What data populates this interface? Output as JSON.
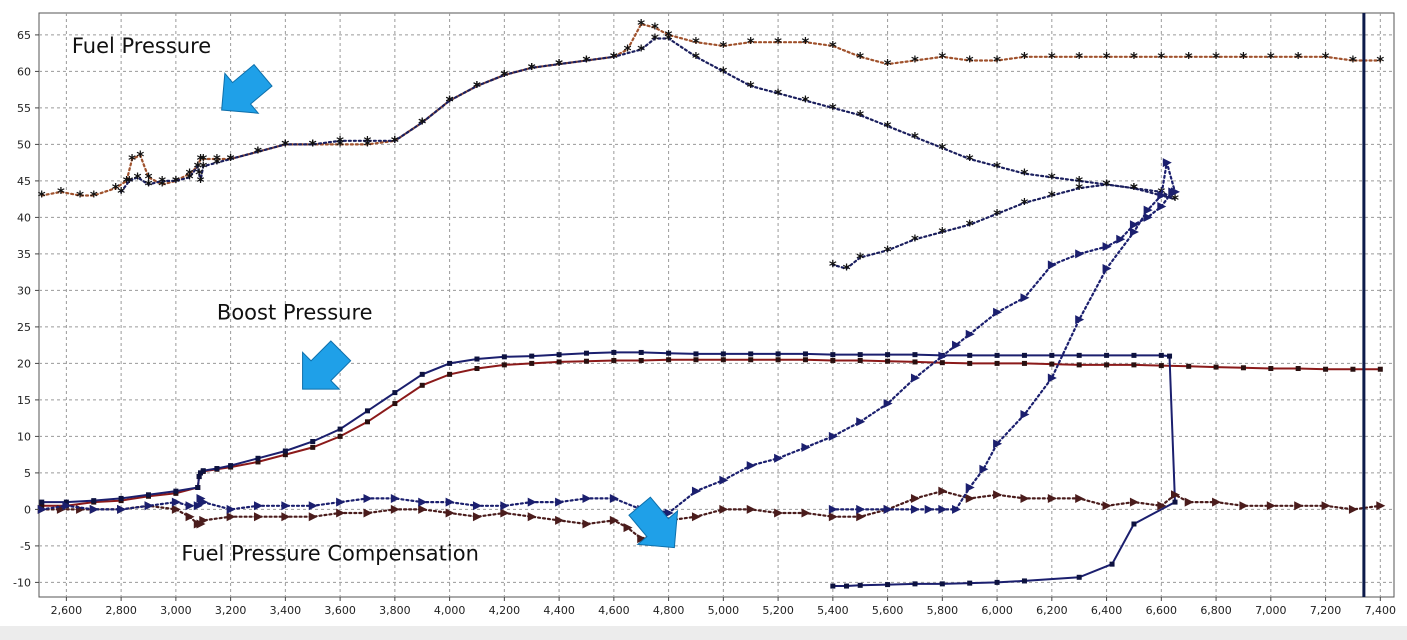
{
  "chart_data": {
    "type": "line",
    "title": "",
    "xlabel": "",
    "ylabel": "",
    "xlim": [
      2500,
      7450
    ],
    "ylim": [
      -12,
      68
    ],
    "grid": true,
    "x_ticks": [
      2600,
      2800,
      3000,
      3200,
      3400,
      3600,
      3800,
      4000,
      4200,
      4400,
      4600,
      4800,
      5000,
      5200,
      5400,
      5600,
      5800,
      6000,
      6200,
      6400,
      6600,
      6800,
      7000,
      7200,
      7400
    ],
    "x_tick_labels": [
      "2,600",
      "2,800",
      "3,000",
      "3,200",
      "3,400",
      "3,600",
      "3,800",
      "4,000",
      "4,200",
      "4,400",
      "4,600",
      "4,800",
      "5,000",
      "5,200",
      "5,400",
      "5,600",
      "5,800",
      "6,000",
      "6,200",
      "6,400",
      "6,600",
      "6,800",
      "7,000",
      "7,200",
      "7,400"
    ],
    "y_ticks": [
      65,
      60,
      55,
      50,
      45,
      40,
      35,
      30,
      25,
      20,
      15,
      10,
      5,
      0,
      -5,
      -10
    ],
    "y_tick_labels": [
      "65",
      "60",
      "55",
      "50",
      "45",
      "40",
      "35",
      "30",
      "25",
      "20",
      "15",
      "10",
      "5",
      "0",
      "-5",
      "-10"
    ],
    "cursor_x": 7340,
    "annotations": [
      {
        "text": "Fuel Pressure",
        "x": 2620,
        "y": 62.5,
        "arrow_x": 3240,
        "arrow_y": 57
      },
      {
        "text": "Boost Pressure",
        "x": 3150,
        "y": 26,
        "arrow_x": 3530,
        "arrow_y": 19
      },
      {
        "text": "Fuel Pressure Compensation",
        "x": 3020,
        "y": -7,
        "arrow_x": 4760,
        "arrow_y": -2.5
      }
    ],
    "series": [
      {
        "name": "Fuel Pressure",
        "run": 1,
        "color": "#a0522d",
        "marker": "star",
        "line_style": "dotted",
        "x": [
          2510,
          2580,
          2650,
          2700,
          2780,
          2820,
          2840,
          2870,
          2900,
          2950,
          3000,
          3050,
          3080,
          3090,
          3100,
          3150,
          3200,
          3300,
          3400,
          3500,
          3600,
          3700,
          3800,
          3900,
          4000,
          4100,
          4200,
          4300,
          4400,
          4500,
          4600,
          4650,
          4700,
          4750,
          4800,
          4900,
          5000,
          5100,
          5200,
          5300,
          5400,
          5500,
          5600,
          5700,
          5800,
          5900,
          6000,
          6100,
          6200,
          6300,
          6400,
          6500,
          6600,
          6700,
          6800,
          6900,
          7000,
          7100,
          7200,
          7300,
          7400
        ],
        "y": [
          43,
          43.5,
          43,
          43,
          44,
          45,
          48,
          48.5,
          45.5,
          44.5,
          45,
          46,
          47,
          48,
          48,
          48,
          48,
          49,
          50,
          50,
          50,
          50,
          50.5,
          53,
          56,
          58,
          59.5,
          60.5,
          61,
          61.5,
          62,
          63,
          66.5,
          66,
          65,
          64,
          63.5,
          64,
          64,
          64,
          63.5,
          62,
          61,
          61.5,
          62,
          61.5,
          61.5,
          62,
          62,
          62,
          62,
          62,
          62,
          62,
          62,
          62,
          62,
          62,
          62,
          61.5,
          61.5
        ]
      },
      {
        "name": "Fuel Pressure",
        "run": 2,
        "color": "#1b1f5e",
        "marker": "star",
        "line_style": "dotted",
        "x": [
          2800,
          2830,
          2860,
          2900,
          2950,
          3000,
          3050,
          3080,
          3085,
          3090,
          3100,
          3150,
          3200,
          3300,
          3400,
          3500,
          3600,
          3700,
          3800,
          3900,
          4000,
          4100,
          4200,
          4300,
          4400,
          4500,
          4600,
          4700,
          4750,
          4800,
          4900,
          5000,
          5100,
          5200,
          5300,
          5400,
          5500,
          5600,
          5700,
          5800,
          5900,
          6000,
          6100,
          6200,
          6300,
          6400,
          6500,
          6600,
          6650,
          6500,
          6400,
          6300,
          6200,
          6100,
          6000,
          5900,
          5800,
          5700,
          5600,
          5500,
          5450,
          5400
        ],
        "y": [
          43.5,
          45,
          45.5,
          44.5,
          45,
          45,
          45.5,
          47,
          46,
          45,
          47,
          47.5,
          48,
          49,
          50,
          50,
          50.5,
          50.5,
          50.5,
          53,
          56,
          58,
          59.5,
          60.5,
          61,
          61.5,
          62,
          63,
          64.5,
          64.5,
          62,
          60,
          58,
          57,
          56,
          55,
          54,
          52.5,
          51,
          49.5,
          48,
          47,
          46,
          45.5,
          45,
          44.5,
          44,
          43.5,
          42.5,
          44,
          44.5,
          44,
          43,
          42,
          40.5,
          39,
          38,
          37,
          35.5,
          34.5,
          33,
          33.5
        ]
      },
      {
        "name": "Boost Pressure",
        "run": 1,
        "color": "#8b1a1a",
        "marker": "square",
        "line_style": "solid",
        "x": [
          2510,
          2600,
          2700,
          2800,
          2900,
          3000,
          3080,
          3085,
          3090,
          3100,
          3150,
          3200,
          3300,
          3400,
          3500,
          3600,
          3700,
          3800,
          3900,
          4000,
          4100,
          4200,
          4300,
          4400,
          4500,
          4600,
          4700,
          4800,
          4900,
          5000,
          5100,
          5200,
          5300,
          5400,
          5500,
          5600,
          5700,
          5800,
          5900,
          6000,
          6100,
          6200,
          6300,
          6400,
          6500,
          6600,
          6700,
          6800,
          6900,
          7000,
          7100,
          7200,
          7300,
          7400
        ],
        "y": [
          0.5,
          0.5,
          1,
          1.2,
          1.8,
          2.2,
          3,
          4.5,
          5,
          5.2,
          5.5,
          5.8,
          6.5,
          7.5,
          8.5,
          10,
          12,
          14.5,
          17,
          18.5,
          19.3,
          19.8,
          20,
          20.2,
          20.3,
          20.4,
          20.4,
          20.5,
          20.5,
          20.5,
          20.5,
          20.5,
          20.5,
          20.4,
          20.4,
          20.3,
          20.2,
          20.1,
          20,
          20,
          20,
          19.9,
          19.8,
          19.8,
          19.8,
          19.7,
          19.6,
          19.5,
          19.4,
          19.3,
          19.3,
          19.2,
          19.2,
          19.2
        ]
      },
      {
        "name": "Boost Pressure",
        "run": 2,
        "color": "#1b1f6e",
        "marker": "square",
        "line_style": "solid",
        "x": [
          2510,
          2600,
          2700,
          2800,
          2900,
          3000,
          3080,
          3085,
          3090,
          3100,
          3150,
          3200,
          3300,
          3400,
          3500,
          3600,
          3700,
          3800,
          3900,
          4000,
          4100,
          4200,
          4300,
          4400,
          4500,
          4600,
          4700,
          4800,
          4900,
          5000,
          5100,
          5200,
          5300,
          5400,
          5500,
          5600,
          5700,
          5800,
          5900,
          6000,
          6100,
          6200,
          6300,
          6400,
          6500,
          6600,
          6630,
          6650,
          6500,
          6420,
          6300,
          6100,
          6000,
          5900,
          5800,
          5700,
          5600,
          5500,
          5450,
          5400
        ],
        "y": [
          1,
          1,
          1.2,
          1.5,
          2,
          2.5,
          3,
          4.5,
          5,
          5.3,
          5.6,
          6,
          7,
          8,
          9.3,
          11,
          13.5,
          16,
          18.5,
          20,
          20.6,
          20.9,
          21,
          21.2,
          21.4,
          21.5,
          21.5,
          21.4,
          21.3,
          21.3,
          21.3,
          21.3,
          21.3,
          21.2,
          21.2,
          21.2,
          21.2,
          21.1,
          21.1,
          21.1,
          21.1,
          21.1,
          21.1,
          21.1,
          21.1,
          21.1,
          21,
          1,
          -2,
          -7.5,
          -9.3,
          -9.8,
          -10,
          -10.1,
          -10.2,
          -10.2,
          -10.3,
          -10.4,
          -10.5,
          -10.5
        ]
      },
      {
        "name": "Fuel Pressure Compensation",
        "run": 1,
        "color": "#4a1c1c",
        "marker": "triangle",
        "line_style": "dotted",
        "x": [
          2510,
          2580,
          2650,
          2700,
          2800,
          2900,
          3000,
          3050,
          3080,
          3090,
          3100,
          3200,
          3300,
          3400,
          3500,
          3600,
          3700,
          3800,
          3900,
          4000,
          4100,
          4200,
          4300,
          4400,
          4500,
          4600,
          4650,
          4700,
          4750,
          4800,
          4900,
          5000,
          5100,
          5200,
          5300,
          5400,
          5500,
          5600,
          5700,
          5800,
          5900,
          6000,
          6100,
          6200,
          6300,
          6400,
          6500,
          6600,
          6650,
          6700,
          6800,
          6900,
          7000,
          7100,
          7200,
          7300,
          7400
        ],
        "y": [
          0,
          0,
          0,
          0,
          0,
          0.5,
          0,
          -1,
          -2,
          -2,
          -1.5,
          -1,
          -1,
          -1,
          -1,
          -0.5,
          -0.5,
          0,
          0,
          -0.5,
          -1,
          -0.5,
          -1,
          -1.5,
          -2,
          -1.5,
          -2.5,
          -4,
          -3.5,
          -1.5,
          -1,
          0,
          0,
          -0.5,
          -0.5,
          -1,
          -1,
          0,
          1.5,
          2.5,
          1.5,
          2,
          1.5,
          1.5,
          1.5,
          0.5,
          1,
          0.5,
          2,
          1,
          1,
          0.5,
          0.5,
          0.5,
          0.5,
          0,
          0.5
        ]
      },
      {
        "name": "Fuel Pressure Compensation",
        "run": 2,
        "color": "#1b1f6e",
        "marker": "triangle",
        "line_style": "dotted",
        "x": [
          2510,
          2600,
          2700,
          2800,
          2900,
          3000,
          3050,
          3080,
          3090,
          3100,
          3200,
          3300,
          3400,
          3500,
          3600,
          3700,
          3800,
          3900,
          4000,
          4100,
          4200,
          4300,
          4400,
          4500,
          4600,
          4700,
          4750,
          4800,
          4900,
          5000,
          5100,
          5200,
          5300,
          5400,
          5500,
          5600,
          5700,
          5800,
          5850,
          5900,
          6000,
          6100,
          6200,
          6300,
          6400,
          6450,
          6500,
          6550,
          6600,
          6640,
          6650,
          6620,
          6600,
          6550,
          6500,
          6400,
          6300,
          6200,
          6100,
          6000,
          5950,
          5900,
          5850,
          5800,
          5750,
          5700,
          5600,
          5500,
          5400
        ],
        "y": [
          0,
          0.5,
          0,
          0,
          0.5,
          1,
          0.5,
          0.5,
          1.5,
          1,
          0,
          0.5,
          0.5,
          0.5,
          1,
          1.5,
          1.5,
          1,
          1,
          0.5,
          0.5,
          1,
          1,
          1.5,
          1.5,
          0,
          0,
          -0.5,
          2.5,
          4,
          6,
          7,
          8.5,
          10,
          12,
          14.5,
          18,
          21,
          22.5,
          24,
          27,
          29,
          33.5,
          35,
          36,
          37,
          39,
          40,
          41.5,
          43.5,
          43.5,
          47.5,
          43,
          41,
          38,
          33,
          26,
          18,
          13,
          9,
          5.5,
          3,
          0,
          0,
          0,
          0,
          0,
          0,
          0
        ]
      }
    ]
  }
}
